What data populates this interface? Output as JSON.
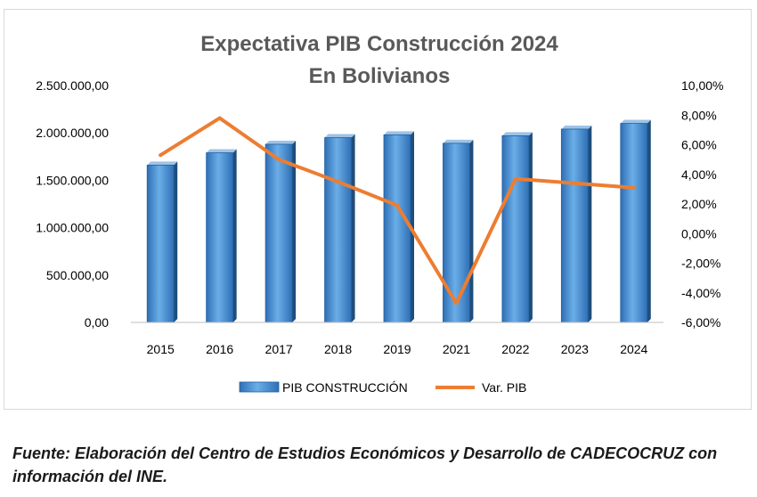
{
  "chart_data": {
    "type": "bar",
    "title_line1": "Expectativa PIB Construcción 2024",
    "title_line2": "En Bolivianos",
    "categories": [
      "2015",
      "2016",
      "2017",
      "2018",
      "2019",
      "2021",
      "2022",
      "2023",
      "2024"
    ],
    "series": [
      {
        "name": "PIB CONSTRUCCIÓN",
        "type": "bar",
        "axis": "left",
        "color": "#5b9bd5",
        "values": [
          1660000,
          1790000,
          1880000,
          1950000,
          1980000,
          1890000,
          1970000,
          2040000,
          2100000
        ]
      },
      {
        "name": "Var. PIB",
        "type": "line",
        "axis": "right",
        "color": "#ed7d31",
        "values": [
          5.3,
          7.8,
          5.0,
          3.5,
          1.9,
          -4.7,
          3.7,
          3.4,
          3.1
        ]
      }
    ],
    "y_left": {
      "min": 0,
      "max": 2500000,
      "ticks": [
        "0,00",
        "500.000,00",
        "1.000.000,00",
        "1.500.000,00",
        "2.000.000,00",
        "2.500.000,00"
      ]
    },
    "y_right": {
      "min": -6,
      "max": 10,
      "ticks": [
        "-6,00%",
        "-4,00%",
        "-2,00%",
        "0,00%",
        "2,00%",
        "4,00%",
        "6,00%",
        "8,00%",
        "10,00%"
      ]
    },
    "grid": false,
    "legend": "bottom"
  },
  "source_note": "Fuente: Elaboración del Centro de Estudios Económicos y Desarrollo de CADECOCRUZ con información del INE."
}
